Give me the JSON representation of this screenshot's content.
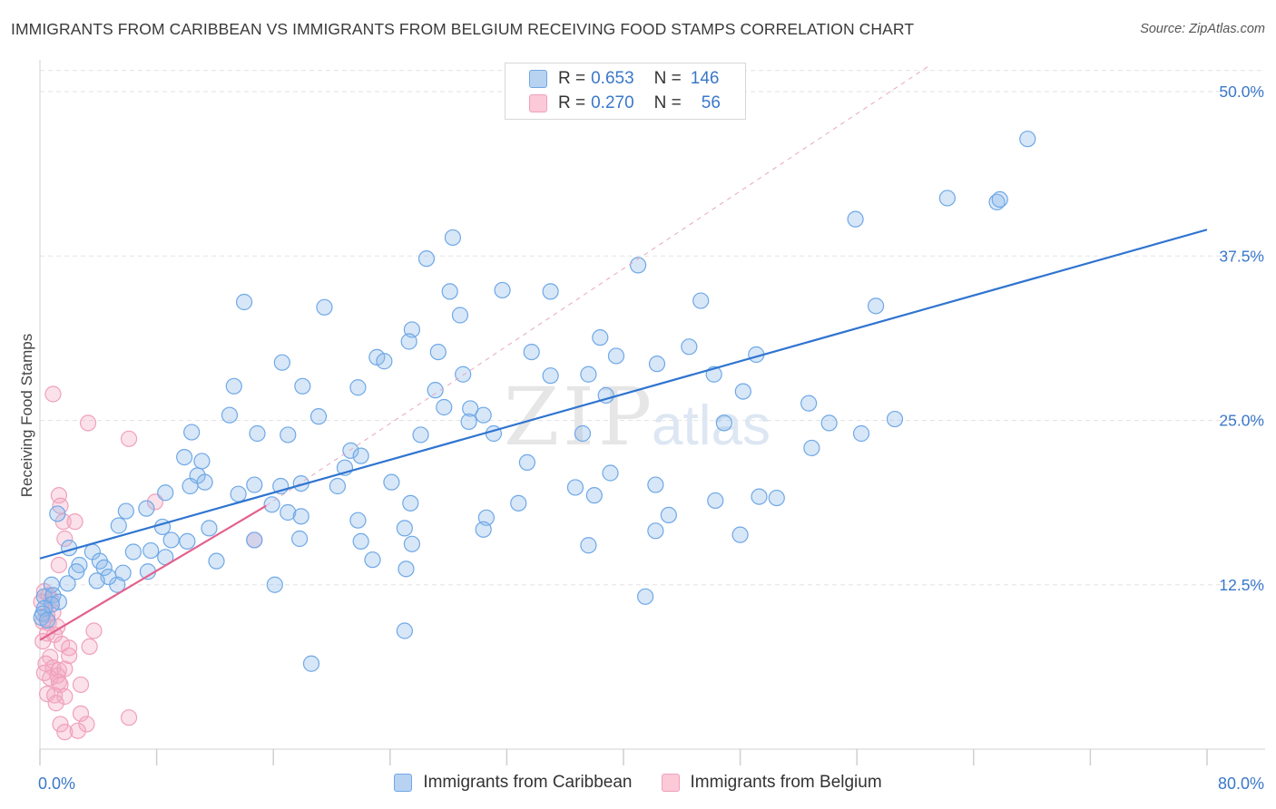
{
  "title": "IMMIGRANTS FROM CARIBBEAN VS IMMIGRANTS FROM BELGIUM RECEIVING FOOD STAMPS CORRELATION CHART",
  "source": "Source: ZipAtlas.com",
  "watermark": {
    "zip": "ZIP",
    "atlas": "atlas"
  },
  "legend": {
    "caribbean": {
      "r_label": "R = ",
      "r_value": "0.653",
      "n_label": "N = ",
      "n_value": "146"
    },
    "belgium": {
      "r_label": "R = ",
      "r_value": "0.270",
      "n_label": "N = ",
      "n_value": "56"
    }
  },
  "chart_data": {
    "type": "scatter",
    "title": "IMMIGRANTS FROM CARIBBEAN VS IMMIGRANTS FROM BELGIUM RECEIVING FOOD STAMPS CORRELATION CHART",
    "xlabel": "",
    "ylabel": "Receiving Food Stamps",
    "xlim": [
      0,
      80
    ],
    "ylim": [
      0,
      52
    ],
    "x_tick_labels": [
      "0.0%",
      "80.0%"
    ],
    "y_ticks": [
      12.5,
      25.0,
      37.5,
      50.0
    ],
    "y_tick_labels": [
      "12.5%",
      "25.0%",
      "37.5%",
      "50.0%"
    ],
    "grid": true,
    "legend_position": "bottom",
    "colors": {
      "caribbean": "#6fa8e6",
      "caribbean_line": "#2f74d0",
      "belgium": "#f0a0bb",
      "belgium_line": "#e2618e",
      "diagonal": "#e8a8bc"
    },
    "series": [
      {
        "name": "Immigrants from Caribbean",
        "trend": {
          "x": [
            0,
            80
          ],
          "y": [
            14.5,
            39.5
          ]
        },
        "points": [
          [
            67.7,
            46.4
          ],
          [
            62.2,
            41.9
          ],
          [
            65.6,
            41.6
          ],
          [
            65.8,
            41.8
          ],
          [
            55.9,
            40.3
          ],
          [
            28.3,
            38.9
          ],
          [
            26.5,
            37.3
          ],
          [
            41.0,
            36.8
          ],
          [
            28.1,
            34.8
          ],
          [
            31.7,
            34.9
          ],
          [
            35.0,
            34.8
          ],
          [
            14.0,
            34.0
          ],
          [
            19.5,
            33.6
          ],
          [
            45.3,
            34.1
          ],
          [
            57.3,
            33.7
          ],
          [
            28.8,
            33.0
          ],
          [
            25.5,
            31.9
          ],
          [
            25.3,
            31.0
          ],
          [
            38.4,
            31.3
          ],
          [
            44.5,
            30.6
          ],
          [
            23.1,
            29.8
          ],
          [
            27.3,
            30.2
          ],
          [
            33.7,
            30.2
          ],
          [
            39.5,
            29.9
          ],
          [
            49.1,
            30.0
          ],
          [
            16.6,
            29.4
          ],
          [
            23.6,
            29.5
          ],
          [
            42.3,
            29.3
          ],
          [
            35.0,
            28.4
          ],
          [
            46.2,
            28.5
          ],
          [
            37.6,
            28.5
          ],
          [
            29.0,
            28.5
          ],
          [
            18.0,
            27.6
          ],
          [
            13.3,
            27.6
          ],
          [
            21.8,
            27.5
          ],
          [
            27.1,
            27.3
          ],
          [
            48.2,
            27.2
          ],
          [
            38.8,
            26.9
          ],
          [
            52.7,
            26.3
          ],
          [
            27.7,
            26.0
          ],
          [
            29.5,
            25.9
          ],
          [
            30.4,
            25.4
          ],
          [
            19.1,
            25.3
          ],
          [
            13.0,
            25.4
          ],
          [
            58.6,
            25.1
          ],
          [
            46.9,
            24.8
          ],
          [
            54.1,
            24.8
          ],
          [
            29.4,
            24.9
          ],
          [
            10.4,
            24.1
          ],
          [
            14.9,
            24.0
          ],
          [
            17.0,
            23.9
          ],
          [
            26.1,
            23.9
          ],
          [
            37.2,
            24.0
          ],
          [
            31.1,
            24.0
          ],
          [
            56.3,
            24.0
          ],
          [
            52.9,
            22.9
          ],
          [
            21.3,
            22.7
          ],
          [
            22.0,
            22.3
          ],
          [
            9.9,
            22.2
          ],
          [
            11.1,
            21.9
          ],
          [
            33.4,
            21.8
          ],
          [
            20.9,
            21.4
          ],
          [
            39.1,
            21.0
          ],
          [
            10.8,
            20.8
          ],
          [
            11.3,
            20.3
          ],
          [
            10.3,
            20.0
          ],
          [
            8.6,
            19.5
          ],
          [
            24.1,
            20.3
          ],
          [
            14.7,
            20.1
          ],
          [
            17.9,
            20.2
          ],
          [
            16.5,
            20.0
          ],
          [
            20.4,
            20.0
          ],
          [
            42.2,
            20.1
          ],
          [
            36.7,
            19.9
          ],
          [
            13.6,
            19.4
          ],
          [
            25.4,
            18.7
          ],
          [
            15.9,
            18.6
          ],
          [
            32.8,
            18.7
          ],
          [
            49.3,
            19.2
          ],
          [
            38.0,
            19.3
          ],
          [
            46.3,
            18.9
          ],
          [
            50.5,
            19.1
          ],
          [
            1.2,
            17.9
          ],
          [
            5.9,
            18.1
          ],
          [
            7.3,
            18.3
          ],
          [
            17.0,
            18.0
          ],
          [
            17.9,
            17.7
          ],
          [
            21.8,
            17.4
          ],
          [
            30.6,
            17.6
          ],
          [
            43.1,
            17.8
          ],
          [
            5.4,
            17.0
          ],
          [
            8.4,
            16.9
          ],
          [
            11.6,
            16.8
          ],
          [
            25.0,
            16.8
          ],
          [
            30.4,
            16.7
          ],
          [
            42.2,
            16.6
          ],
          [
            48.0,
            16.3
          ],
          [
            9.0,
            15.9
          ],
          [
            10.1,
            15.8
          ],
          [
            17.8,
            16.0
          ],
          [
            14.7,
            15.9
          ],
          [
            22.0,
            15.8
          ],
          [
            25.5,
            15.6
          ],
          [
            37.6,
            15.5
          ],
          [
            2.0,
            15.3
          ],
          [
            3.6,
            15.0
          ],
          [
            6.4,
            15.0
          ],
          [
            7.6,
            15.1
          ],
          [
            8.6,
            14.6
          ],
          [
            12.1,
            14.3
          ],
          [
            22.8,
            14.4
          ],
          [
            25.1,
            13.7
          ],
          [
            2.7,
            14.0
          ],
          [
            4.1,
            14.3
          ],
          [
            4.4,
            13.8
          ],
          [
            7.4,
            13.5
          ],
          [
            5.7,
            13.4
          ],
          [
            2.5,
            13.5
          ],
          [
            5.3,
            12.5
          ],
          [
            4.7,
            13.1
          ],
          [
            0.8,
            12.5
          ],
          [
            1.9,
            12.6
          ],
          [
            3.9,
            12.8
          ],
          [
            16.1,
            12.5
          ],
          [
            41.5,
            11.6
          ],
          [
            0.3,
            11.6
          ],
          [
            0.9,
            11.7
          ],
          [
            1.3,
            11.2
          ],
          [
            0.8,
            11.0
          ],
          [
            0.3,
            10.7
          ],
          [
            0.2,
            10.3
          ],
          [
            0.1,
            10.0
          ],
          [
            0.5,
            9.8
          ],
          [
            25.0,
            9.0
          ],
          [
            18.6,
            6.5
          ]
        ]
      },
      {
        "name": "Immigrants from Belgium",
        "trend": {
          "x": [
            0,
            15.5
          ],
          "y": [
            8.3,
            18.5
          ]
        },
        "points": [
          [
            0.9,
            27.0
          ],
          [
            3.3,
            24.8
          ],
          [
            6.1,
            23.6
          ],
          [
            1.3,
            19.3
          ],
          [
            7.9,
            18.8
          ],
          [
            1.4,
            18.5
          ],
          [
            1.6,
            17.3
          ],
          [
            2.4,
            17.3
          ],
          [
            1.7,
            16.0
          ],
          [
            14.7,
            15.9
          ],
          [
            1.3,
            14.0
          ],
          [
            0.3,
            12.0
          ],
          [
            0.6,
            11.7
          ],
          [
            0.8,
            11.3
          ],
          [
            0.1,
            11.2
          ],
          [
            0.5,
            10.2
          ],
          [
            0.9,
            10.4
          ],
          [
            0.2,
            9.7
          ],
          [
            0.6,
            9.6
          ],
          [
            1.2,
            9.3
          ],
          [
            3.7,
            9.0
          ],
          [
            0.5,
            8.8
          ],
          [
            1.0,
            8.7
          ],
          [
            0.2,
            8.2
          ],
          [
            1.5,
            8.0
          ],
          [
            2.0,
            7.7
          ],
          [
            3.4,
            7.8
          ],
          [
            0.7,
            7.0
          ],
          [
            2.0,
            7.1
          ],
          [
            0.4,
            6.5
          ],
          [
            0.9,
            6.2
          ],
          [
            1.3,
            6.0
          ],
          [
            1.7,
            6.1
          ],
          [
            0.3,
            5.8
          ],
          [
            1.2,
            5.6
          ],
          [
            0.7,
            5.4
          ],
          [
            1.3,
            5.1
          ],
          [
            1.4,
            4.9
          ],
          [
            2.8,
            4.9
          ],
          [
            0.5,
            4.2
          ],
          [
            1.0,
            4.1
          ],
          [
            1.7,
            4.0
          ],
          [
            1.1,
            3.5
          ],
          [
            2.8,
            2.7
          ],
          [
            6.1,
            2.4
          ],
          [
            1.4,
            1.9
          ],
          [
            3.2,
            1.9
          ],
          [
            1.7,
            1.3
          ],
          [
            2.6,
            1.4
          ]
        ]
      }
    ]
  },
  "bottom_legend": {
    "caribbean": "Immigrants from Caribbean",
    "belgium": "Immigrants from Belgium"
  }
}
